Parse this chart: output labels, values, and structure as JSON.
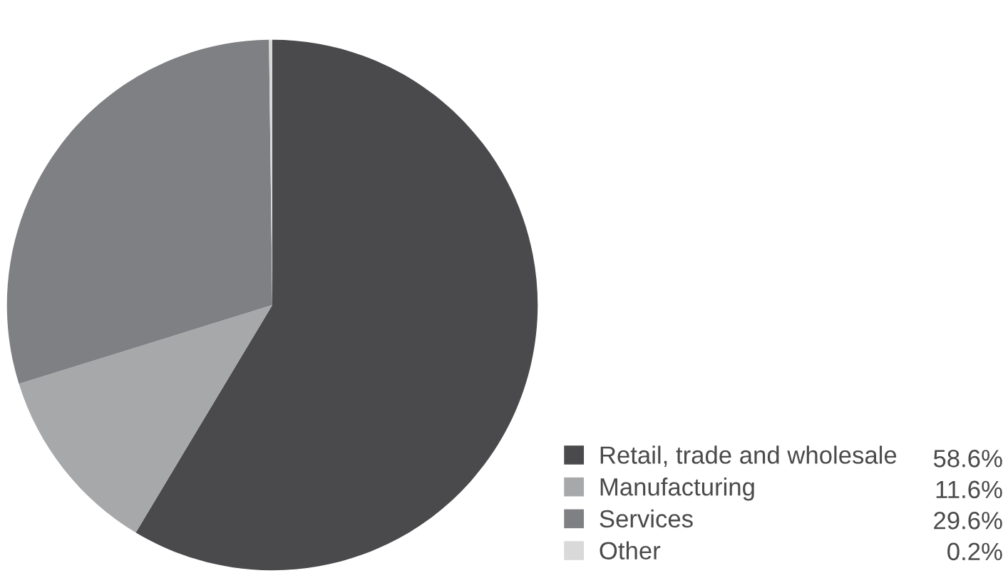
{
  "chart_data": {
    "type": "pie",
    "categories": [
      "Retail, trade and wholesale",
      "Manufacturing",
      "Services",
      "Other"
    ],
    "values": [
      58.6,
      11.6,
      29.6,
      0.2
    ],
    "colors": [
      "#4a4a4c",
      "#a7a8aa",
      "#7f8083",
      "#d9d9d9"
    ],
    "value_labels": [
      "58.6%",
      "11.6%",
      "29.6%",
      "0.2%"
    ],
    "legend": "bottom right"
  }
}
